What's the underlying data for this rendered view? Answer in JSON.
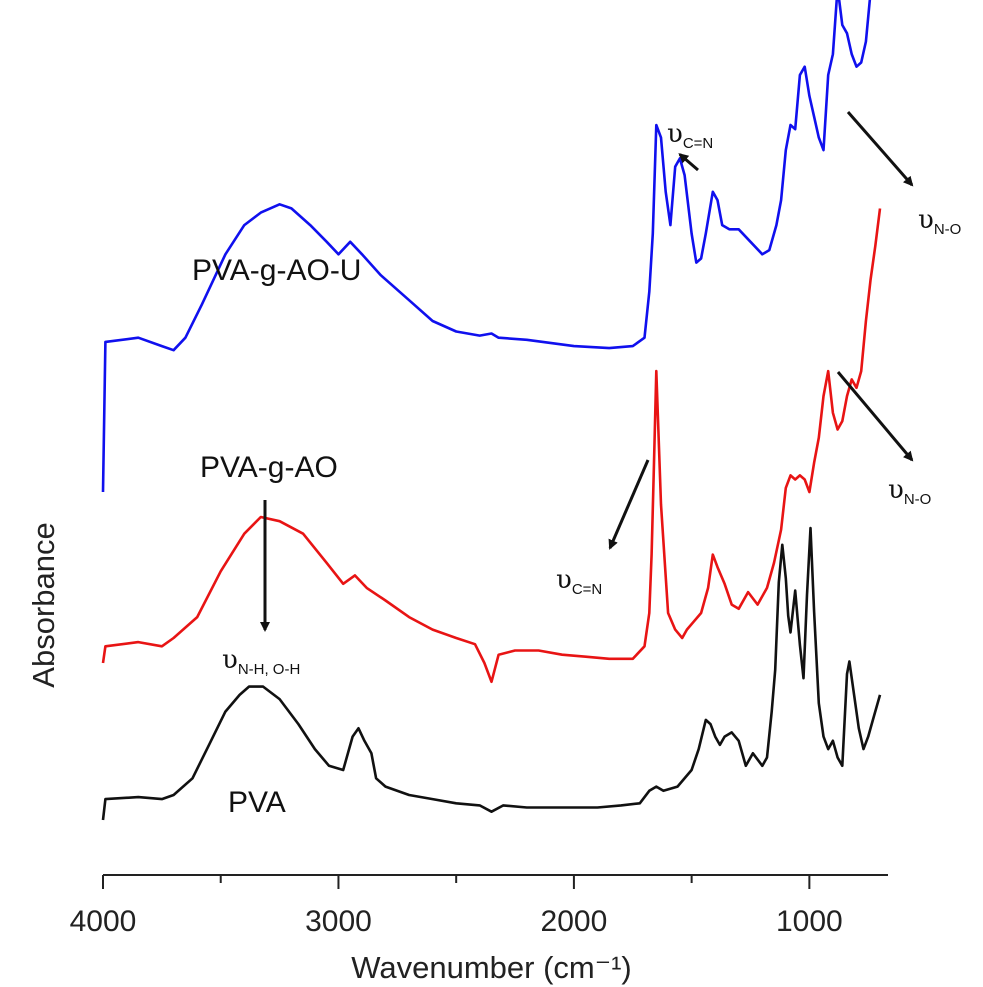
{
  "chart_data": {
    "type": "line",
    "xlabel": "Wavenumber (cm⁻¹)",
    "ylabel": "Absorbance",
    "xlim": [
      4000,
      700
    ],
    "x_reversed": true,
    "y_ticks_shown": false,
    "xticks": [
      4000,
      3000,
      2000,
      1000
    ],
    "grid": false,
    "series": [
      {
        "name": "PVA-g-AO-U",
        "color": "#1010ee",
        "points": [
          [
            4000,
            0.0
          ],
          [
            3990,
            0.36
          ],
          [
            3850,
            0.37
          ],
          [
            3750,
            0.35
          ],
          [
            3700,
            0.34
          ],
          [
            3650,
            0.37
          ],
          [
            3580,
            0.45
          ],
          [
            3480,
            0.57
          ],
          [
            3400,
            0.64
          ],
          [
            3330,
            0.67
          ],
          [
            3250,
            0.69
          ],
          [
            3200,
            0.68
          ],
          [
            3120,
            0.64
          ],
          [
            3050,
            0.6
          ],
          [
            3000,
            0.57
          ],
          [
            2950,
            0.6
          ],
          [
            2900,
            0.57
          ],
          [
            2820,
            0.52
          ],
          [
            2700,
            0.46
          ],
          [
            2600,
            0.41
          ],
          [
            2500,
            0.385
          ],
          [
            2400,
            0.375
          ],
          [
            2350,
            0.38
          ],
          [
            2320,
            0.37
          ],
          [
            2200,
            0.365
          ],
          [
            2000,
            0.35
          ],
          [
            1850,
            0.345
          ],
          [
            1750,
            0.35
          ],
          [
            1700,
            0.37
          ],
          [
            1680,
            0.48
          ],
          [
            1665,
            0.62
          ],
          [
            1650,
            0.88
          ],
          [
            1630,
            0.85
          ],
          [
            1610,
            0.72
          ],
          [
            1590,
            0.64
          ],
          [
            1570,
            0.78
          ],
          [
            1550,
            0.8
          ],
          [
            1530,
            0.76
          ],
          [
            1500,
            0.62
          ],
          [
            1480,
            0.55
          ],
          [
            1460,
            0.56
          ],
          [
            1440,
            0.62
          ],
          [
            1410,
            0.72
          ],
          [
            1390,
            0.7
          ],
          [
            1370,
            0.64
          ],
          [
            1340,
            0.63
          ],
          [
            1300,
            0.63
          ],
          [
            1250,
            0.6
          ],
          [
            1200,
            0.57
          ],
          [
            1170,
            0.58
          ],
          [
            1140,
            0.64
          ],
          [
            1120,
            0.7
          ],
          [
            1100,
            0.82
          ],
          [
            1080,
            0.88
          ],
          [
            1060,
            0.87
          ],
          [
            1040,
            1.0
          ],
          [
            1020,
            1.02
          ],
          [
            1000,
            0.95
          ],
          [
            980,
            0.9
          ],
          [
            960,
            0.85
          ],
          [
            940,
            0.82
          ],
          [
            920,
            1.0
          ],
          [
            900,
            1.05
          ],
          [
            880,
            1.21
          ],
          [
            860,
            1.12
          ],
          [
            840,
            1.1
          ],
          [
            820,
            1.05
          ],
          [
            800,
            1.02
          ],
          [
            780,
            1.03
          ],
          [
            760,
            1.08
          ],
          [
            740,
            1.2
          ],
          [
            720,
            1.26
          ],
          [
            700,
            1.42
          ]
        ]
      },
      {
        "name": "PVA-g-AO",
        "color": "#e81414",
        "points": [
          [
            4000,
            0.0
          ],
          [
            3990,
            0.04
          ],
          [
            3850,
            0.05
          ],
          [
            3750,
            0.04
          ],
          [
            3700,
            0.06
          ],
          [
            3600,
            0.11
          ],
          [
            3500,
            0.22
          ],
          [
            3400,
            0.31
          ],
          [
            3330,
            0.35
          ],
          [
            3250,
            0.34
          ],
          [
            3150,
            0.31
          ],
          [
            3050,
            0.24
          ],
          [
            2980,
            0.19
          ],
          [
            2930,
            0.21
          ],
          [
            2880,
            0.18
          ],
          [
            2800,
            0.15
          ],
          [
            2700,
            0.11
          ],
          [
            2600,
            0.08
          ],
          [
            2500,
            0.06
          ],
          [
            2420,
            0.045
          ],
          [
            2380,
            0.0
          ],
          [
            2350,
            -0.045
          ],
          [
            2320,
            0.02
          ],
          [
            2250,
            0.03
          ],
          [
            2150,
            0.03
          ],
          [
            2050,
            0.02
          ],
          [
            1950,
            0.015
          ],
          [
            1850,
            0.01
          ],
          [
            1750,
            0.01
          ],
          [
            1700,
            0.04
          ],
          [
            1680,
            0.12
          ],
          [
            1670,
            0.26
          ],
          [
            1660,
            0.48
          ],
          [
            1650,
            0.7
          ],
          [
            1630,
            0.38
          ],
          [
            1600,
            0.12
          ],
          [
            1570,
            0.08
          ],
          [
            1540,
            0.06
          ],
          [
            1520,
            0.08
          ],
          [
            1490,
            0.1
          ],
          [
            1460,
            0.12
          ],
          [
            1430,
            0.18
          ],
          [
            1410,
            0.26
          ],
          [
            1390,
            0.23
          ],
          [
            1360,
            0.19
          ],
          [
            1330,
            0.14
          ],
          [
            1300,
            0.13
          ],
          [
            1260,
            0.17
          ],
          [
            1220,
            0.14
          ],
          [
            1180,
            0.18
          ],
          [
            1150,
            0.24
          ],
          [
            1120,
            0.32
          ],
          [
            1100,
            0.42
          ],
          [
            1080,
            0.45
          ],
          [
            1060,
            0.44
          ],
          [
            1040,
            0.45
          ],
          [
            1020,
            0.44
          ],
          [
            1000,
            0.41
          ],
          [
            980,
            0.48
          ],
          [
            960,
            0.54
          ],
          [
            940,
            0.64
          ],
          [
            920,
            0.7
          ],
          [
            900,
            0.6
          ],
          [
            880,
            0.56
          ],
          [
            860,
            0.58
          ],
          [
            840,
            0.64
          ],
          [
            820,
            0.68
          ],
          [
            800,
            0.66
          ],
          [
            780,
            0.7
          ],
          [
            760,
            0.82
          ],
          [
            740,
            0.92
          ],
          [
            720,
            1.0
          ],
          [
            700,
            1.09
          ]
        ]
      },
      {
        "name": "PVA",
        "color": "#111111",
        "points": [
          [
            4000,
            0.0
          ],
          [
            3990,
            0.05
          ],
          [
            3850,
            0.055
          ],
          [
            3750,
            0.05
          ],
          [
            3700,
            0.06
          ],
          [
            3620,
            0.1
          ],
          [
            3550,
            0.18
          ],
          [
            3480,
            0.26
          ],
          [
            3420,
            0.3
          ],
          [
            3380,
            0.32
          ],
          [
            3320,
            0.32
          ],
          [
            3250,
            0.29
          ],
          [
            3170,
            0.23
          ],
          [
            3100,
            0.17
          ],
          [
            3040,
            0.13
          ],
          [
            2980,
            0.12
          ],
          [
            2940,
            0.2
          ],
          [
            2915,
            0.22
          ],
          [
            2890,
            0.19
          ],
          [
            2860,
            0.16
          ],
          [
            2840,
            0.1
          ],
          [
            2800,
            0.08
          ],
          [
            2700,
            0.06
          ],
          [
            2600,
            0.05
          ],
          [
            2500,
            0.04
          ],
          [
            2400,
            0.035
          ],
          [
            2350,
            0.02
          ],
          [
            2300,
            0.035
          ],
          [
            2200,
            0.03
          ],
          [
            2100,
            0.03
          ],
          [
            2000,
            0.03
          ],
          [
            1900,
            0.03
          ],
          [
            1800,
            0.035
          ],
          [
            1720,
            0.04
          ],
          [
            1680,
            0.07
          ],
          [
            1650,
            0.08
          ],
          [
            1620,
            0.07
          ],
          [
            1560,
            0.08
          ],
          [
            1500,
            0.12
          ],
          [
            1470,
            0.17
          ],
          [
            1440,
            0.24
          ],
          [
            1420,
            0.23
          ],
          [
            1400,
            0.2
          ],
          [
            1380,
            0.18
          ],
          [
            1360,
            0.2
          ],
          [
            1330,
            0.21
          ],
          [
            1300,
            0.19
          ],
          [
            1270,
            0.13
          ],
          [
            1240,
            0.16
          ],
          [
            1200,
            0.13
          ],
          [
            1180,
            0.15
          ],
          [
            1160,
            0.26
          ],
          [
            1145,
            0.36
          ],
          [
            1130,
            0.57
          ],
          [
            1115,
            0.66
          ],
          [
            1100,
            0.58
          ],
          [
            1090,
            0.49
          ],
          [
            1080,
            0.45
          ],
          [
            1060,
            0.55
          ],
          [
            1040,
            0.42
          ],
          [
            1025,
            0.34
          ],
          [
            1010,
            0.54
          ],
          [
            995,
            0.7
          ],
          [
            980,
            0.5
          ],
          [
            960,
            0.28
          ],
          [
            940,
            0.2
          ],
          [
            920,
            0.17
          ],
          [
            900,
            0.19
          ],
          [
            880,
            0.15
          ],
          [
            860,
            0.13
          ],
          [
            840,
            0.35
          ],
          [
            830,
            0.38
          ],
          [
            810,
            0.3
          ],
          [
            790,
            0.22
          ],
          [
            770,
            0.17
          ],
          [
            750,
            0.2
          ],
          [
            730,
            0.24
          ],
          [
            700,
            0.3
          ]
        ]
      }
    ],
    "annotations": [
      {
        "symbol": "υ",
        "sub": "C=N",
        "target": [
          1550,
          0.8
        ]
      },
      {
        "symbol": "υ",
        "sub": "N-O",
        "target": [
          840,
          1.1
        ]
      },
      {
        "symbol": "υ",
        "sub": "C=N",
        "target": [
          1670,
          0.42
        ]
      },
      {
        "symbol": "υ",
        "sub": "N-O",
        "target": [
          900,
          0.6
        ]
      },
      {
        "symbol": "υ",
        "sub": "N-H, O-H",
        "target": [
          3300,
          0.35
        ]
      }
    ]
  }
}
